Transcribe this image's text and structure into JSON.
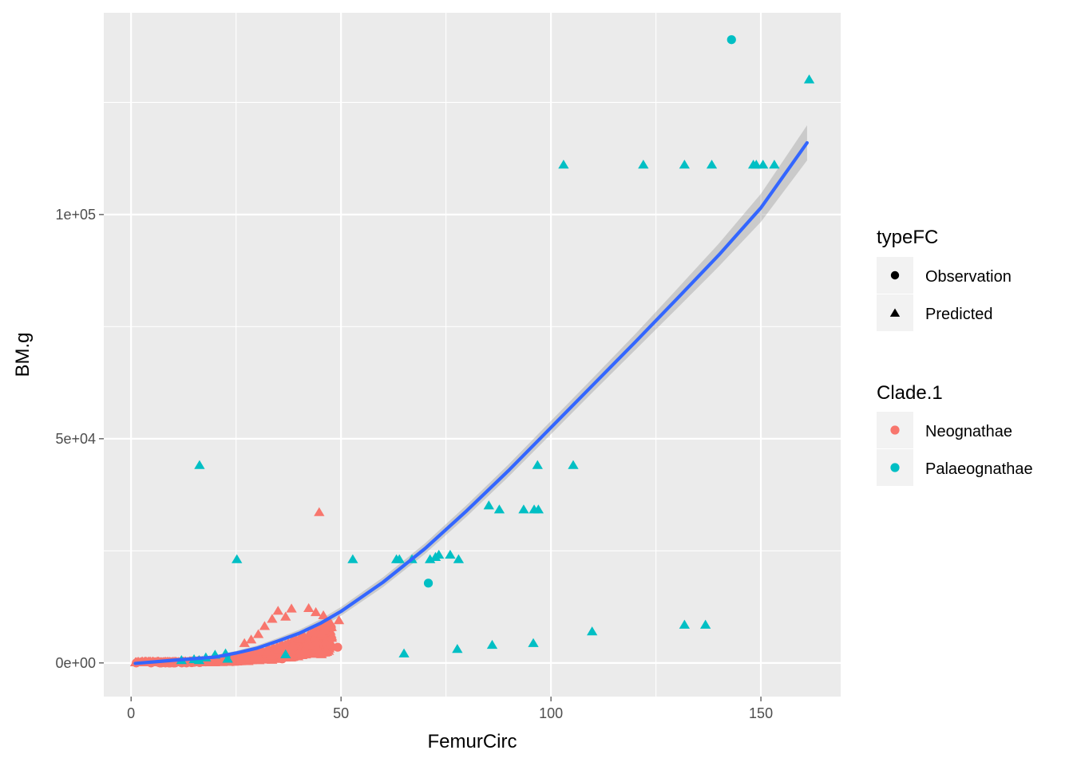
{
  "chart_data": {
    "type": "scatter",
    "xlabel": "FemurCirc",
    "ylabel": "BM.g",
    "xlim": [
      -6.5,
      169
    ],
    "ylim": [
      -7500,
      145000
    ],
    "x_ticks": [
      0,
      50,
      100,
      150
    ],
    "x_tick_labels": [
      "0",
      "50",
      "100",
      "150"
    ],
    "y_ticks": [
      0,
      50000,
      100000
    ],
    "y_tick_labels": [
      "0e+00",
      "5e+04",
      "1e+05"
    ],
    "grid": true,
    "legend_position": "right",
    "legends": [
      {
        "title": "typeFC",
        "entries": [
          {
            "label": "Observation",
            "shape": "circle",
            "color": "#000000"
          },
          {
            "label": "Predicted",
            "shape": "triangle",
            "color": "#000000"
          }
        ]
      },
      {
        "title": "Clade.1",
        "entries": [
          {
            "label": "Neognathae",
            "shape": "circle",
            "color": "#F8766D"
          },
          {
            "label": "Palaeognathae",
            "shape": "circle",
            "color": "#00BFC4"
          }
        ]
      }
    ],
    "colors": {
      "Neognathae": "#F8766D",
      "Palaeognathae": "#00BFC4",
      "fit": "#3366FF",
      "ribbon": "#999999"
    },
    "series": [
      {
        "name": "Neognathae",
        "cluster": {
          "x_range": [
            1,
            48
          ],
          "approx_count": 1200,
          "mostly": "Predicted"
        },
        "points": [
          {
            "x": 44.8,
            "y": 33500,
            "type": "Predicted"
          },
          {
            "x": 49.2,
            "y": 3500,
            "type": "Observation"
          },
          {
            "x": 47.5,
            "y": 8800,
            "type": "Predicted"
          },
          {
            "x": 49.5,
            "y": 9400,
            "type": "Predicted"
          },
          {
            "x": 45.8,
            "y": 10500,
            "type": "Predicted"
          },
          {
            "x": 44.0,
            "y": 11200,
            "type": "Predicted"
          },
          {
            "x": 42.3,
            "y": 12100,
            "type": "Predicted"
          },
          {
            "x": 38.2,
            "y": 12000,
            "type": "Predicted"
          },
          {
            "x": 35.0,
            "y": 11500,
            "type": "Predicted"
          },
          {
            "x": 36.8,
            "y": 10200,
            "type": "Predicted"
          },
          {
            "x": 33.6,
            "y": 9700,
            "type": "Predicted"
          },
          {
            "x": 31.8,
            "y": 8100,
            "type": "Predicted"
          },
          {
            "x": 30.3,
            "y": 6300,
            "type": "Predicted"
          },
          {
            "x": 28.6,
            "y": 5100,
            "type": "Predicted"
          },
          {
            "x": 27.0,
            "y": 4300,
            "type": "Predicted"
          },
          {
            "x": 41.0,
            "y": 2600,
            "type": "Predicted"
          },
          {
            "x": 38.5,
            "y": 1800,
            "type": "Predicted"
          },
          {
            "x": 36.0,
            "y": 900,
            "type": "Observation"
          }
        ]
      },
      {
        "name": "Palaeognathae",
        "points": [
          {
            "x": 143.0,
            "y": 139000,
            "type": "Observation"
          },
          {
            "x": 161.5,
            "y": 130000,
            "type": "Predicted"
          },
          {
            "x": 103.0,
            "y": 111000,
            "type": "Predicted"
          },
          {
            "x": 122.0,
            "y": 111000,
            "type": "Predicted"
          },
          {
            "x": 131.8,
            "y": 111000,
            "type": "Predicted"
          },
          {
            "x": 138.3,
            "y": 111000,
            "type": "Predicted"
          },
          {
            "x": 148.2,
            "y": 111000,
            "type": "Predicted"
          },
          {
            "x": 148.9,
            "y": 111000,
            "type": "Predicted"
          },
          {
            "x": 150.5,
            "y": 111000,
            "type": "Predicted"
          },
          {
            "x": 153.2,
            "y": 111000,
            "type": "Predicted"
          },
          {
            "x": 16.3,
            "y": 44000,
            "type": "Predicted"
          },
          {
            "x": 96.8,
            "y": 44000,
            "type": "Predicted"
          },
          {
            "x": 105.3,
            "y": 44000,
            "type": "Predicted"
          },
          {
            "x": 85.2,
            "y": 35000,
            "type": "Predicted"
          },
          {
            "x": 87.7,
            "y": 34100,
            "type": "Predicted"
          },
          {
            "x": 93.5,
            "y": 34100,
            "type": "Predicted"
          },
          {
            "x": 96.0,
            "y": 34100,
            "type": "Predicted"
          },
          {
            "x": 97.0,
            "y": 34100,
            "type": "Predicted"
          },
          {
            "x": 25.2,
            "y": 23000,
            "type": "Predicted"
          },
          {
            "x": 52.8,
            "y": 23000,
            "type": "Predicted"
          },
          {
            "x": 63.2,
            "y": 23000,
            "type": "Predicted"
          },
          {
            "x": 63.9,
            "y": 23000,
            "type": "Predicted"
          },
          {
            "x": 66.9,
            "y": 23000,
            "type": "Predicted"
          },
          {
            "x": 71.2,
            "y": 23000,
            "type": "Predicted"
          },
          {
            "x": 72.5,
            "y": 23500,
            "type": "Predicted"
          },
          {
            "x": 73.3,
            "y": 24000,
            "type": "Predicted"
          },
          {
            "x": 76.0,
            "y": 24000,
            "type": "Predicted"
          },
          {
            "x": 78.0,
            "y": 23000,
            "type": "Predicted"
          },
          {
            "x": 70.8,
            "y": 17800,
            "type": "Observation"
          },
          {
            "x": 131.8,
            "y": 8400,
            "type": "Predicted"
          },
          {
            "x": 136.8,
            "y": 8400,
            "type": "Predicted"
          },
          {
            "x": 109.8,
            "y": 6900,
            "type": "Predicted"
          },
          {
            "x": 95.8,
            "y": 4300,
            "type": "Predicted"
          },
          {
            "x": 86.0,
            "y": 3900,
            "type": "Predicted"
          },
          {
            "x": 77.7,
            "y": 3000,
            "type": "Predicted"
          },
          {
            "x": 65.0,
            "y": 2000,
            "type": "Predicted"
          },
          {
            "x": 36.8,
            "y": 1800,
            "type": "Predicted"
          },
          {
            "x": 22.5,
            "y": 2000,
            "type": "Predicted"
          },
          {
            "x": 23.0,
            "y": 800,
            "type": "Predicted"
          },
          {
            "x": 12.0,
            "y": 500,
            "type": "Predicted"
          },
          {
            "x": 15.0,
            "y": 700,
            "type": "Predicted"
          },
          {
            "x": 16.2,
            "y": 500,
            "type": "Predicted"
          },
          {
            "x": 17.8,
            "y": 1100,
            "type": "Predicted"
          },
          {
            "x": 20.0,
            "y": 1700,
            "type": "Predicted"
          }
        ]
      }
    ],
    "fit": {
      "method": "loess",
      "x": [
        1,
        10,
        20,
        25,
        30,
        35,
        40,
        45,
        50,
        60,
        70,
        80,
        90,
        100,
        110,
        120,
        130,
        140,
        150,
        161
      ],
      "y": [
        -100,
        600,
        1300,
        2200,
        3300,
        4900,
        6600,
        8800,
        11500,
        18000,
        25500,
        34000,
        43000,
        52500,
        62000,
        71500,
        81200,
        91000,
        101500,
        116000
      ],
      "se": [
        300,
        200,
        200,
        250,
        300,
        350,
        400,
        450,
        500,
        550,
        600,
        650,
        700,
        750,
        800,
        900,
        1100,
        1300,
        1600,
        2000
      ]
    }
  }
}
